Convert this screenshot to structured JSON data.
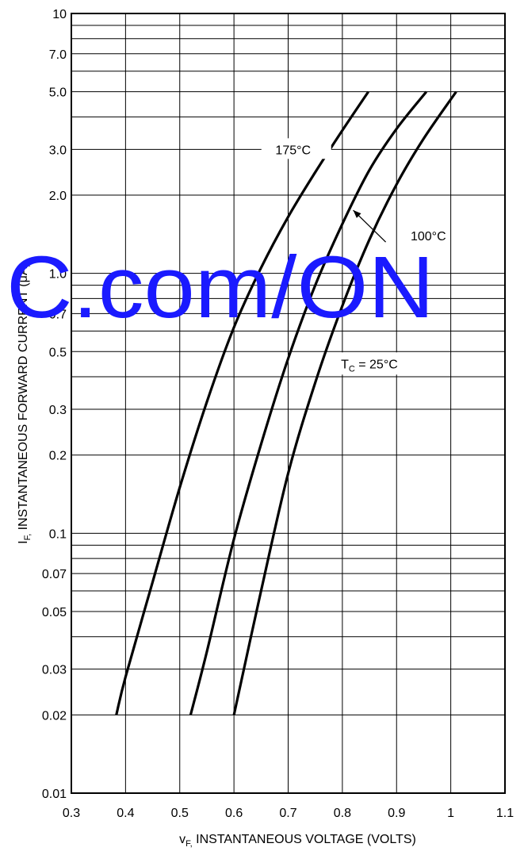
{
  "chart_data": {
    "type": "line",
    "xlabel": "v",
    "xlabel_sub": "F,",
    "xlabel_rest": " INSTANTANEOUS VOLTAGE (VOLTS)",
    "ylabel": "I",
    "ylabel_sub": "F,",
    "ylabel_rest": " INSTANTANEOUS FORWARD CURRENT (μA)",
    "xlim": [
      0.3,
      1.1
    ],
    "ylim": [
      0.01,
      10
    ],
    "y_scale": "log",
    "grid": true,
    "x_ticks": [
      0.3,
      0.4,
      0.5,
      0.6,
      0.7,
      0.8,
      0.9,
      1.0,
      1.1
    ],
    "x_tick_labels": [
      "0.3",
      "0.4",
      "0.5",
      "0.6",
      "0.7",
      "0.8",
      "0.9",
      "1",
      "1.1"
    ],
    "y_ticks": [
      0.01,
      0.02,
      0.03,
      0.05,
      0.07,
      0.1,
      0.2,
      0.3,
      0.5,
      0.7,
      1.0,
      2.0,
      3.0,
      5.0,
      7.0,
      10
    ],
    "y_tick_labels": [
      "0.01",
      "0.02",
      "0.03",
      "0.05",
      "0.07",
      "0.1",
      "0.2",
      "0.3",
      "0.5",
      "0.7",
      "1.0",
      "2.0",
      "3.0",
      "5.0",
      "7.0",
      "10"
    ],
    "y_minor_grid": [
      0.04,
      0.06,
      0.08,
      0.09,
      0.4,
      0.6,
      0.8,
      0.9,
      4,
      6,
      8,
      9
    ],
    "series": [
      {
        "name": "175°C",
        "x": [
          0.383,
          0.4,
          0.45,
          0.5,
          0.55,
          0.6,
          0.65,
          0.7,
          0.75,
          0.8,
          0.848
        ],
        "y": [
          0.02,
          0.028,
          0.065,
          0.15,
          0.32,
          0.62,
          1.05,
          1.65,
          2.45,
          3.55,
          5.0
        ]
      },
      {
        "name": "100°C",
        "x": [
          0.52,
          0.55,
          0.6,
          0.65,
          0.7,
          0.75,
          0.8,
          0.85,
          0.9,
          0.955
        ],
        "y": [
          0.02,
          0.035,
          0.095,
          0.22,
          0.47,
          0.9,
          1.55,
          2.5,
          3.6,
          5.0
        ]
      },
      {
        "name": "T_C = 25°C",
        "x": [
          0.6,
          0.65,
          0.7,
          0.75,
          0.8,
          0.85,
          0.9,
          0.95,
          1.01
        ],
        "y": [
          0.02,
          0.06,
          0.17,
          0.38,
          0.75,
          1.35,
          2.2,
          3.3,
          5.0
        ]
      }
    ],
    "annotations": [
      {
        "text": "175°C",
        "x": 0.715,
        "y": 3.0
      },
      {
        "text": "100°C",
        "x": 1.0,
        "y": 1.4
      },
      {
        "text_main": "T",
        "text_sub": "C",
        "text_rest": " = 25°C",
        "x": 0.85,
        "y": 0.45
      }
    ],
    "watermark": "C.com/ON"
  }
}
